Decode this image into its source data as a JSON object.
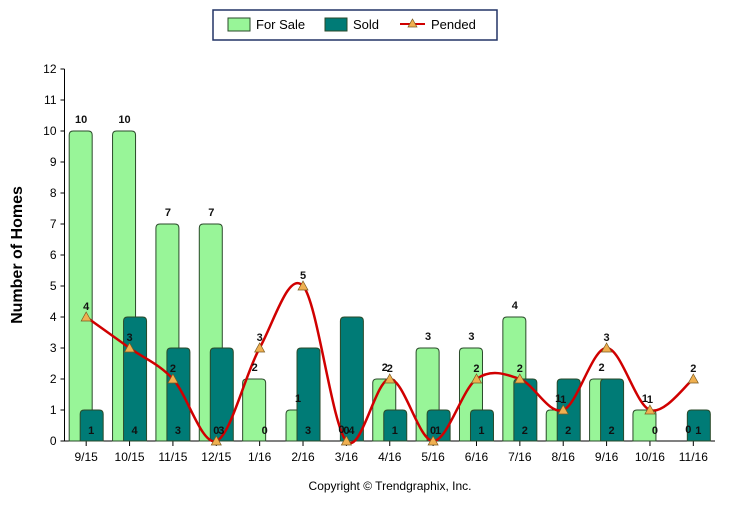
{
  "chart_data": {
    "type": "bar",
    "title": "",
    "xlabel": "",
    "ylabel": "Number of Homes",
    "ylim": [
      0,
      12
    ],
    "yticks": [
      0,
      1,
      2,
      3,
      4,
      5,
      6,
      7,
      8,
      9,
      10,
      11,
      12
    ],
    "categories": [
      "9/15",
      "10/15",
      "11/15",
      "12/15",
      "1/16",
      "2/16",
      "3/16",
      "4/16",
      "5/16",
      "6/16",
      "7/16",
      "8/16",
      "9/16",
      "10/16",
      "11/16"
    ],
    "series": [
      {
        "name": "For Sale",
        "type": "bar",
        "color": "#98f598",
        "values": [
          10,
          10,
          7,
          7,
          2,
          1,
          0,
          2,
          3,
          3,
          4,
          1,
          2,
          1,
          0
        ]
      },
      {
        "name": "Sold",
        "type": "bar",
        "color": "#007b76",
        "values": [
          1,
          4,
          3,
          3,
          0,
          3,
          4,
          1,
          1,
          1,
          2,
          2,
          2,
          0,
          1
        ]
      },
      {
        "name": "Pended",
        "type": "line",
        "color": "#d00000",
        "marker_color": "#f0b050",
        "values": [
          4,
          3,
          2,
          0,
          3,
          5,
          0,
          2,
          0,
          2,
          2,
          1,
          3,
          1,
          2
        ]
      }
    ],
    "legend_position": "top-center",
    "grid": false
  },
  "footer": "Copyright © Trendgraphix, Inc."
}
